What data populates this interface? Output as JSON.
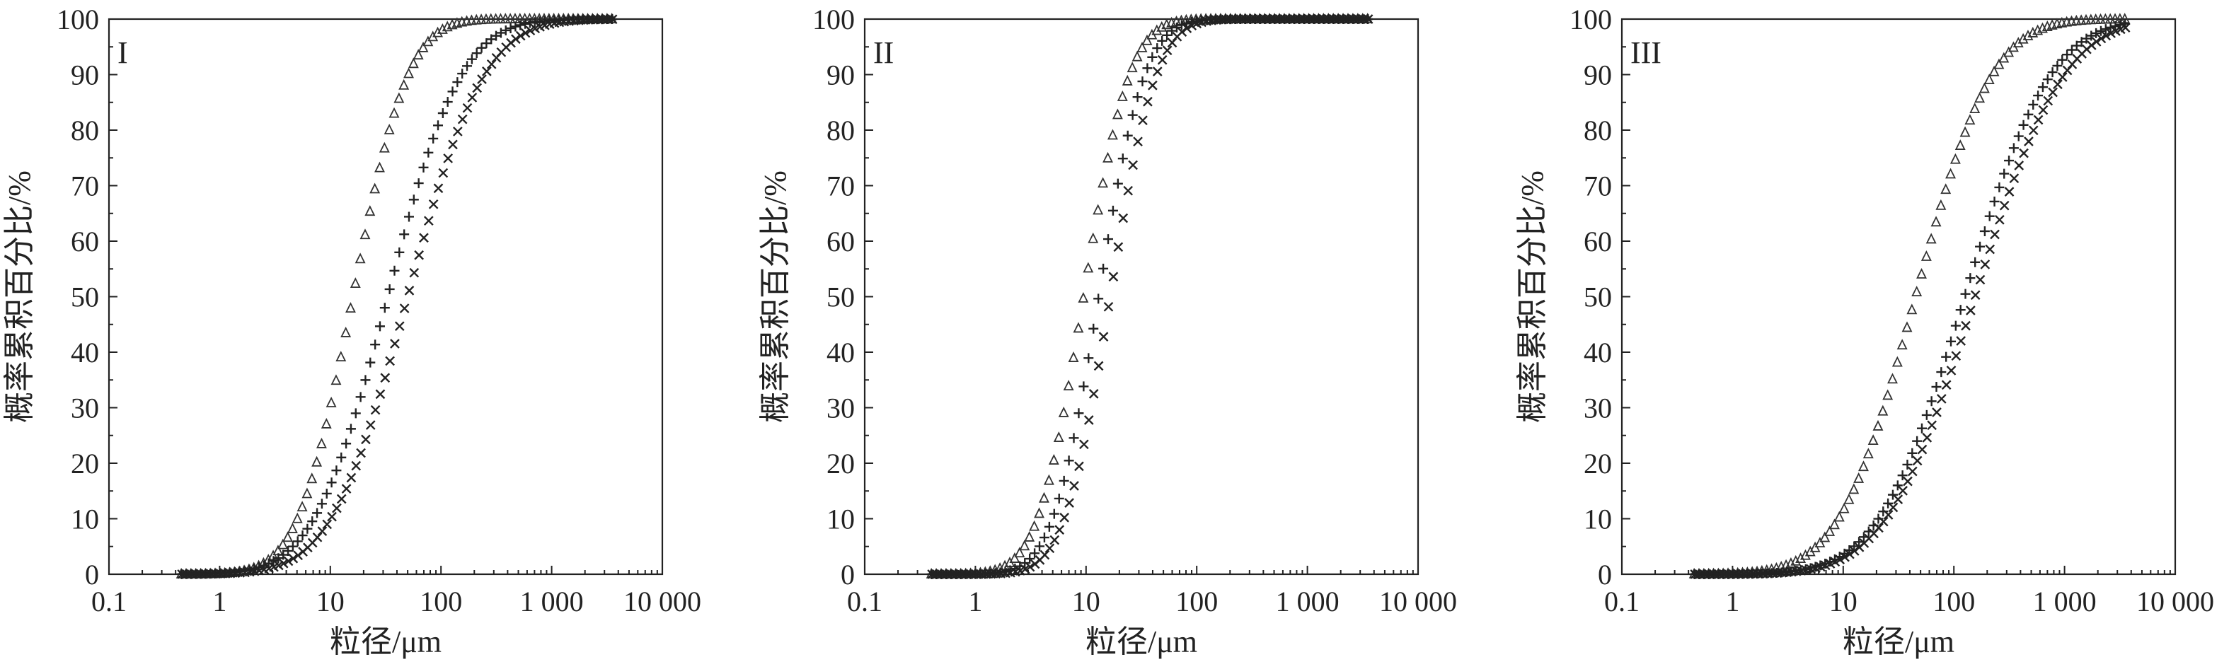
{
  "chart_data": [
    {
      "type": "scatter",
      "panel_label": "I",
      "xlabel": "粒径/μm",
      "ylabel": "概率累积百分比/%",
      "xscale": "log",
      "xlim": [
        0.1,
        10000
      ],
      "ylim": [
        0,
        100
      ],
      "xticks": [
        0.1,
        1,
        10,
        100,
        1000,
        10000
      ],
      "xtick_labels": [
        "0.1",
        "1",
        "10",
        "100",
        "1 000",
        "10 000"
      ],
      "yticks": [
        0,
        10,
        20,
        30,
        40,
        50,
        60,
        70,
        80,
        90,
        100
      ],
      "ytick_labels": [
        "0",
        "10",
        "20",
        "30",
        "40",
        "50",
        "60",
        "70",
        "80",
        "90",
        "100"
      ],
      "grid": false,
      "legend": "none",
      "series": [
        {
          "marker": "triangle",
          "x_range": [
            0.45,
            3500
          ],
          "d50": 16,
          "spread": 0.9
        },
        {
          "marker": "plus",
          "x_range": [
            0.45,
            3500
          ],
          "d50": 33,
          "spread": 1.2
        },
        {
          "marker": "cross",
          "x_range": [
            0.45,
            3500
          ],
          "d50": 50,
          "spread": 1.25
        }
      ]
    },
    {
      "type": "scatter",
      "panel_label": "II",
      "xlabel": "粒径/μm",
      "ylabel": "概率累积百分比/%",
      "xscale": "log",
      "xlim": [
        0.1,
        10000
      ],
      "ylim": [
        0,
        100
      ],
      "xticks": [
        0.1,
        1,
        10,
        100,
        1000,
        10000
      ],
      "xtick_labels": [
        "0.1",
        "1",
        "10",
        "100",
        "1 000",
        "10 000"
      ],
      "yticks": [
        0,
        10,
        20,
        30,
        40,
        50,
        60,
        70,
        80,
        90,
        100
      ],
      "ytick_labels": [
        "0",
        "10",
        "20",
        "30",
        "40",
        "50",
        "60",
        "70",
        "80",
        "90",
        "100"
      ],
      "grid": false,
      "legend": "none",
      "series": [
        {
          "marker": "triangle",
          "x_range": [
            0.4,
            3500
          ],
          "d50": 9.5,
          "spread": 0.75
        },
        {
          "marker": "plus",
          "x_range": [
            0.4,
            3500
          ],
          "d50": 13,
          "spread": 0.75
        },
        {
          "marker": "cross",
          "x_range": [
            0.4,
            3500
          ],
          "d50": 16.5,
          "spread": 0.75
        }
      ]
    },
    {
      "type": "scatter",
      "panel_label": "III",
      "xlabel": "粒径/μm",
      "ylabel": "概率累积百分比/%",
      "xscale": "log",
      "xlim": [
        0.1,
        10000
      ],
      "ylim": [
        0,
        100
      ],
      "xticks": [
        0.1,
        1,
        10,
        100,
        1000,
        10000
      ],
      "xtick_labels": [
        "0.1",
        "1",
        "10",
        "100",
        "1 000",
        "10 000"
      ],
      "yticks": [
        0,
        10,
        20,
        30,
        40,
        50,
        60,
        70,
        80,
        90,
        100
      ],
      "ytick_labels": [
        "0",
        "10",
        "20",
        "30",
        "40",
        "50",
        "60",
        "70",
        "80",
        "90",
        "100"
      ],
      "grid": false,
      "legend": "none",
      "series": [
        {
          "marker": "triangle",
          "x_range": [
            0.45,
            3500
          ],
          "d50": 45,
          "spread": 1.25
        },
        {
          "marker": "plus",
          "x_range": [
            0.45,
            3500
          ],
          "d50": 125,
          "spread": 1.4
        },
        {
          "marker": "cross",
          "x_range": [
            0.45,
            3500
          ],
          "d50": 155,
          "spread": 1.45
        }
      ]
    }
  ]
}
